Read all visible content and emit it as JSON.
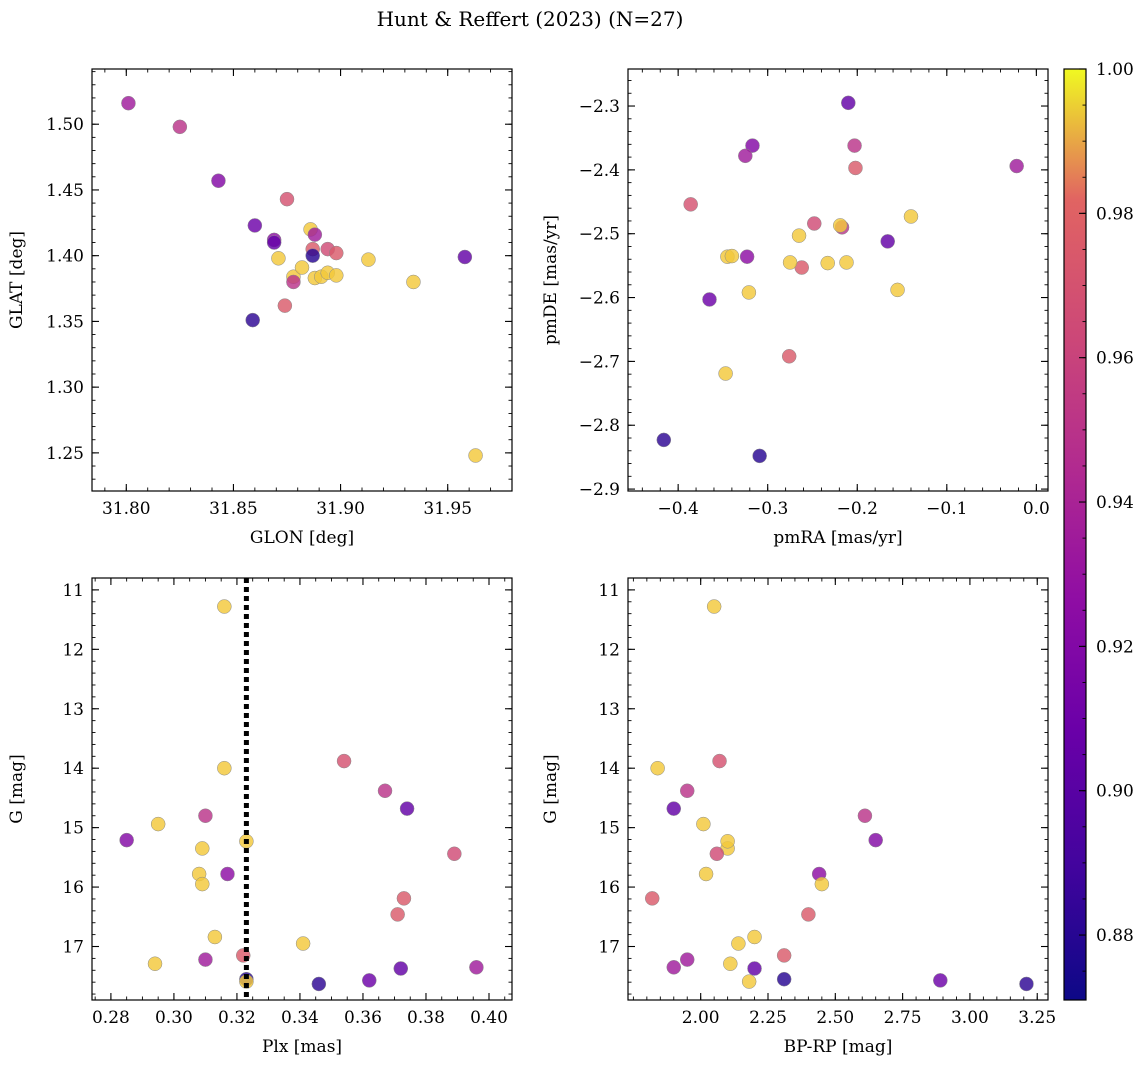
{
  "chart_data": {
    "title": "Hunt & Reffert (2023) (N=27)",
    "colorbar": {
      "colormap": "plasma",
      "range": [
        0.871,
        1.0
      ],
      "ticks": [
        0.88,
        0.9,
        0.92,
        0.94,
        0.96,
        0.98,
        1.0
      ],
      "tick_labels": [
        "0.88",
        "0.90",
        "0.92",
        "0.94",
        "0.96",
        "0.98",
        "1.00"
      ]
    },
    "stars": [
      {
        "glon": 31.801,
        "glat": 1.516,
        "pmra": -0.022,
        "pmde": -2.394,
        "plx": 0.396,
        "g": 17.35,
        "bprp": 1.9,
        "prob": 0.935
      },
      {
        "glon": 31.825,
        "glat": 1.498,
        "pmra": -0.203,
        "pmde": -2.362,
        "plx": 0.367,
        "g": 14.38,
        "bprp": 1.95,
        "prob": 0.95
      },
      {
        "glon": 31.843,
        "glat": 1.457,
        "pmra": -0.317,
        "pmde": -2.362,
        "plx": 0.285,
        "g": 15.21,
        "bprp": 2.65,
        "prob": 0.92
      },
      {
        "glon": 31.86,
        "glat": 1.423,
        "pmra": -0.365,
        "pmde": -2.603,
        "plx": 0.362,
        "g": 17.57,
        "bprp": 2.89,
        "prob": 0.91
      },
      {
        "glon": 31.859,
        "glat": 1.351,
        "pmra": -0.416,
        "pmde": -2.823,
        "plx": 0.346,
        "g": 17.63,
        "bprp": 3.21,
        "prob": 0.882
      },
      {
        "glon": 31.869,
        "glat": 1.412,
        "pmra": -0.323,
        "pmde": -2.536,
        "plx": 0.317,
        "g": 15.78,
        "bprp": 2.44,
        "prob": 0.925
      },
      {
        "glon": 31.869,
        "glat": 1.41,
        "pmra": -0.166,
        "pmde": -2.512,
        "plx": 0.372,
        "g": 17.37,
        "bprp": 2.2,
        "prob": 0.905
      },
      {
        "glon": 31.871,
        "glat": 1.398,
        "pmra": -0.155,
        "pmde": -2.588,
        "plx": 0.295,
        "g": 14.94,
        "bprp": 2.01,
        "prob": 0.995
      },
      {
        "glon": 31.875,
        "glat": 1.443,
        "pmra": -0.386,
        "pmde": -2.454,
        "plx": 0.354,
        "g": 13.88,
        "bprp": 2.07,
        "prob": 0.97
      },
      {
        "glon": 31.874,
        "glat": 1.362,
        "pmra": -0.276,
        "pmde": -2.692,
        "plx": 0.371,
        "g": 16.46,
        "bprp": 2.4,
        "prob": 0.975
      },
      {
        "glon": 31.878,
        "glat": 1.384,
        "pmra": -0.347,
        "pmde": -2.719,
        "plx": 0.316,
        "g": 11.28,
        "bprp": 2.05,
        "prob": 0.995
      },
      {
        "glon": 31.878,
        "glat": 1.38,
        "pmra": -0.217,
        "pmde": -2.49,
        "plx": 0.31,
        "g": 14.8,
        "bprp": 2.61,
        "prob": 0.95
      },
      {
        "glon": 31.882,
        "glat": 1.391,
        "pmra": -0.219,
        "pmde": -2.487,
        "plx": 0.309,
        "g": 15.35,
        "bprp": 2.1,
        "prob": 0.995
      },
      {
        "glon": 31.886,
        "glat": 1.42,
        "pmra": -0.265,
        "pmde": -2.503,
        "plx": 0.316,
        "g": 14.0,
        "bprp": 1.84,
        "prob": 0.995
      },
      {
        "glon": 31.888,
        "glat": 1.416,
        "pmra": -0.325,
        "pmde": -2.378,
        "plx": 0.31,
        "g": 17.22,
        "bprp": 1.95,
        "prob": 0.935
      },
      {
        "glon": 31.887,
        "glat": 1.405,
        "pmra": -0.262,
        "pmde": -2.553,
        "plx": 0.373,
        "g": 16.19,
        "bprp": 1.82,
        "prob": 0.975
      },
      {
        "glon": 31.887,
        "glat": 1.4,
        "pmra": -0.309,
        "pmde": -2.848,
        "plx": 0.323,
        "g": 17.55,
        "bprp": 2.31,
        "prob": 0.88
      },
      {
        "glon": 31.888,
        "glat": 1.383,
        "pmra": -0.345,
        "pmde": -2.536,
        "plx": 0.323,
        "g": 15.23,
        "bprp": 2.1,
        "prob": 0.995
      },
      {
        "glon": 31.891,
        "glat": 1.384,
        "pmra": -0.212,
        "pmde": -2.545,
        "plx": 0.341,
        "g": 16.95,
        "bprp": 2.14,
        "prob": 0.995
      },
      {
        "glon": 31.894,
        "glat": 1.405,
        "pmra": -0.248,
        "pmde": -2.484,
        "plx": 0.389,
        "g": 15.44,
        "bprp": 2.06,
        "prob": 0.965
      },
      {
        "glon": 31.894,
        "glat": 1.387,
        "pmra": -0.321,
        "pmde": -2.592,
        "plx": 0.308,
        "g": 15.78,
        "bprp": 2.02,
        "prob": 0.995
      },
      {
        "glon": 31.898,
        "glat": 1.402,
        "pmra": -0.202,
        "pmde": -2.397,
        "plx": 0.322,
        "g": 17.15,
        "bprp": 2.31,
        "prob": 0.975
      },
      {
        "glon": 31.898,
        "glat": 1.385,
        "pmra": -0.34,
        "pmde": -2.535,
        "plx": 0.309,
        "g": 15.95,
        "bprp": 2.45,
        "prob": 0.995
      },
      {
        "glon": 31.913,
        "glat": 1.397,
        "pmra": -0.275,
        "pmde": -2.545,
        "plx": 0.313,
        "g": 16.84,
        "bprp": 2.2,
        "prob": 0.995
      },
      {
        "glon": 31.934,
        "glat": 1.38,
        "pmra": -0.14,
        "pmde": -2.473,
        "plx": 0.294,
        "g": 17.29,
        "bprp": 2.11,
        "prob": 0.995
      },
      {
        "glon": 31.958,
        "glat": 1.399,
        "pmra": -0.21,
        "pmde": -2.295,
        "plx": 0.374,
        "g": 14.68,
        "bprp": 1.9,
        "prob": 0.905
      },
      {
        "glon": 31.963,
        "glat": 1.248,
        "pmra": -0.233,
        "pmde": -2.546,
        "plx": 0.323,
        "g": 17.59,
        "bprp": 2.18,
        "prob": 0.995
      }
    ],
    "reference_line": {
      "panel": "plx_g",
      "plx": 0.323,
      "style": "dotted"
    },
    "panels": [
      {
        "id": "glon_glat",
        "type": "scatter",
        "x_field": "glon",
        "y_field": "glat",
        "xlabel": "GLON [deg]",
        "ylabel": "GLAT [deg]",
        "xlim": [
          31.784,
          31.98
        ],
        "ylim": [
          1.221,
          1.542
        ],
        "y_inverted": false,
        "xticks": [
          31.8,
          31.85,
          31.9,
          31.95
        ],
        "xtick_labels": [
          "31.80",
          "31.85",
          "31.90",
          "31.95"
        ],
        "xminor": 0.01,
        "yticks": [
          1.25,
          1.3,
          1.35,
          1.4,
          1.45,
          1.5
        ],
        "ytick_labels": [
          "1.25",
          "1.30",
          "1.35",
          "1.40",
          "1.45",
          "1.50"
        ],
        "yminor": 0.01
      },
      {
        "id": "pmra_pmde",
        "type": "scatter",
        "x_field": "pmra",
        "y_field": "pmde",
        "xlabel": "pmRA [mas/yr]",
        "ylabel": "pmDE [mas/yr]",
        "xlim": [
          -0.456,
          0.013
        ],
        "ylim": [
          -2.903,
          -2.242
        ],
        "y_inverted": false,
        "xticks": [
          -0.4,
          -0.3,
          -0.2,
          -0.1,
          0.0
        ],
        "xtick_labels": [
          "−0.4",
          "−0.3",
          "−0.2",
          "−0.1",
          "0.0"
        ],
        "xminor": 0.02,
        "yticks": [
          -2.9,
          -2.8,
          -2.7,
          -2.6,
          -2.5,
          -2.4,
          -2.3
        ],
        "ytick_labels": [
          "−2.9",
          "−2.8",
          "−2.7",
          "−2.6",
          "−2.5",
          "−2.4",
          "−2.3"
        ],
        "yminor": 0.02
      },
      {
        "id": "plx_g",
        "type": "scatter",
        "x_field": "plx",
        "y_field": "g",
        "xlabel": "Plx [mas]",
        "ylabel": "G [mag]",
        "xlim": [
          0.274,
          0.4073
        ],
        "ylim": [
          10.8,
          17.9
        ],
        "y_inverted": true,
        "xticks": [
          0.28,
          0.3,
          0.32,
          0.34,
          0.36,
          0.38,
          0.4
        ],
        "xtick_labels": [
          "0.28",
          "0.30",
          "0.32",
          "0.34",
          "0.36",
          "0.38",
          "0.40"
        ],
        "xminor": 0.005,
        "yticks": [
          11,
          12,
          13,
          14,
          15,
          16,
          17
        ],
        "ytick_labels": [
          "11",
          "12",
          "13",
          "14",
          "15",
          "16",
          "17"
        ],
        "yminor": 0.2
      },
      {
        "id": "bprp_g",
        "type": "scatter",
        "x_field": "bprp",
        "y_field": "g",
        "xlabel": "BP-RP [mag]",
        "ylabel": "G [mag]",
        "xlim": [
          1.73,
          3.29
        ],
        "ylim": [
          10.8,
          17.9
        ],
        "y_inverted": true,
        "xticks": [
          2.0,
          2.25,
          2.5,
          2.75,
          3.0,
          3.25
        ],
        "xtick_labels": [
          "2.00",
          "2.25",
          "2.50",
          "2.75",
          "3.00",
          "3.25"
        ],
        "xminor": 0.05,
        "yticks": [
          11,
          12,
          13,
          14,
          15,
          16,
          17
        ],
        "ytick_labels": [
          "11",
          "12",
          "13",
          "14",
          "15",
          "16",
          "17"
        ],
        "yminor": 0.2
      }
    ]
  }
}
